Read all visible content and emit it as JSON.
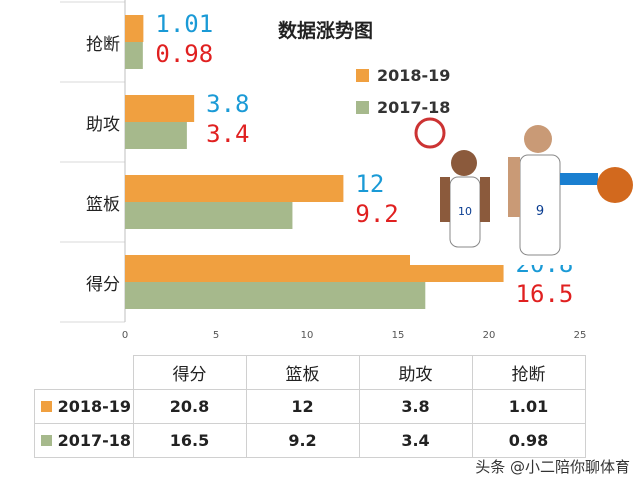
{
  "chart_data": {
    "type": "bar",
    "title": "数据涨势图",
    "categories": [
      "得分",
      "篮板",
      "助攻",
      "抢断"
    ],
    "series": [
      {
        "name": "2018-19",
        "color": "#f0a040",
        "values": [
          20.8,
          12,
          3.8,
          1.01
        ],
        "labels": [
          "20.8",
          "12",
          "3.8",
          "1.01"
        ],
        "label_color": "#1a9ad6"
      },
      {
        "name": "2017-18",
        "color": "#a6b98c",
        "values": [
          16.5,
          9.2,
          3.4,
          0.98
        ],
        "labels": [
          "16.5",
          "9.2",
          "3.4",
          "0.98"
        ],
        "label_color": "#e02020"
      }
    ],
    "xlim": [
      0,
      25
    ],
    "xticks": [
      "0",
      "5",
      "10",
      "15",
      "20",
      "25"
    ],
    "grid": false,
    "legend": "top-right"
  },
  "table": {
    "headers": [
      "得分",
      "篮板",
      "助攻",
      "抢断"
    ],
    "rows": [
      {
        "series": "2018-19",
        "values": [
          "20.8",
          "12",
          "3.8",
          "1.01"
        ]
      },
      {
        "series": "2017-18",
        "values": [
          "16.5",
          "9.2",
          "3.4",
          "0.98"
        ]
      }
    ]
  },
  "watermark": "头条 @小二陪你聊体育"
}
